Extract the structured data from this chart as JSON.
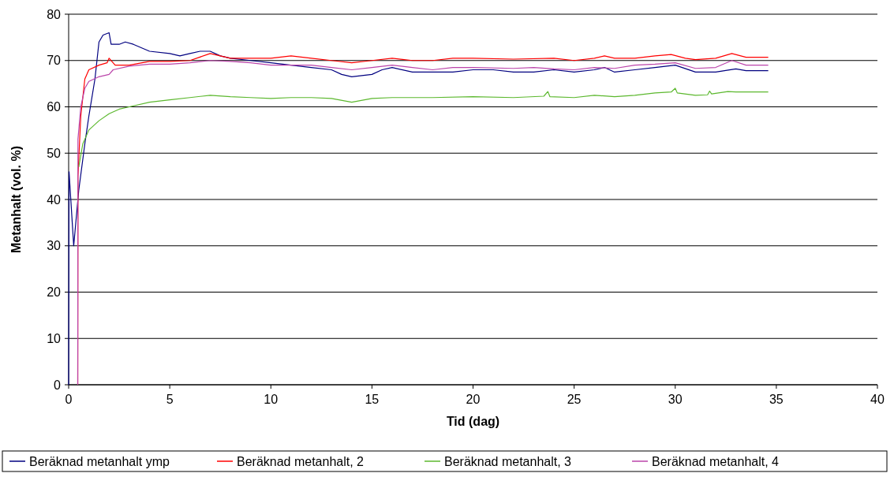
{
  "chart_data": {
    "type": "line",
    "xlabel": "Tid (dag)",
    "ylabel": "Metanhalt (vol. %)",
    "xlim": [
      0,
      40
    ],
    "xticks": [
      0,
      5,
      10,
      15,
      20,
      25,
      30,
      35,
      40
    ],
    "ylim": [
      0,
      80
    ],
    "yticks": [
      0,
      10,
      20,
      30,
      40,
      50,
      60,
      70,
      80
    ],
    "grid": "y",
    "legend": "bottom",
    "marker": "none",
    "line_style": "solid",
    "series": [
      {
        "name": "Beräknad metanhalt ymp",
        "color": "#000080",
        "x": [
          0,
          0.02,
          0.25,
          0.5,
          0.8,
          1.0,
          1.3,
          1.5,
          1.7,
          2.0,
          2.1,
          2.5,
          2.8,
          3.2,
          4,
          5,
          5.5,
          6,
          6.5,
          7,
          7.5,
          8,
          9,
          10,
          11,
          12,
          13,
          13.5,
          14,
          15,
          15.5,
          16,
          17,
          18,
          19,
          20,
          21,
          22,
          23,
          24,
          25,
          26,
          26.5,
          27,
          28,
          29,
          30,
          31,
          32,
          33,
          33.5,
          34.6
        ],
        "values": [
          0,
          46,
          30,
          42,
          52,
          58,
          66,
          74,
          75.5,
          76,
          73.5,
          73.5,
          74,
          73.5,
          72,
          71.5,
          71,
          71.5,
          72,
          72,
          71,
          70.5,
          70,
          69.5,
          69,
          68.5,
          68,
          67,
          66.5,
          67,
          68,
          68.5,
          67.5,
          67.5,
          67.5,
          68,
          68,
          67.5,
          67.5,
          68,
          67.5,
          68,
          68.5,
          67.5,
          68,
          68.5,
          69,
          67.5,
          67.5,
          68.2,
          67.8,
          67.8
        ]
      },
      {
        "name": "Beräknad metanhalt, 2",
        "color": "#ff0000",
        "x": [
          0.45,
          0.46,
          0.6,
          0.8,
          1.0,
          1.5,
          1.9,
          2.0,
          2.3,
          3,
          4,
          5,
          6,
          7,
          8,
          9,
          10,
          11,
          12,
          13,
          14,
          15,
          16,
          17,
          18,
          19,
          20,
          22,
          24,
          25,
          26,
          26.5,
          27,
          28,
          29,
          29.8,
          30.5,
          31,
          32,
          32.8,
          33.5,
          34.6
        ],
        "values": [
          0,
          45,
          58,
          66,
          68,
          69,
          69.5,
          70.5,
          69,
          69,
          69.8,
          69.8,
          70,
          71.5,
          70.5,
          70.5,
          70.5,
          71,
          70.5,
          70,
          69.5,
          70,
          70.5,
          70,
          70,
          70.5,
          70.5,
          70.3,
          70.5,
          70,
          70.5,
          71,
          70.5,
          70.5,
          71,
          71.3,
          70.5,
          70.2,
          70.5,
          71.5,
          70.7,
          70.7
        ]
      },
      {
        "name": "Beräknad metanhalt, 3",
        "color": "#5cb82e",
        "x": [
          0.5,
          0.7,
          1,
          1.5,
          2,
          2.5,
          3,
          4,
          5,
          6,
          7,
          8,
          9,
          10,
          11,
          12,
          13,
          14,
          15,
          16,
          17,
          18,
          20,
          22,
          23.5,
          23.7,
          23.8,
          25,
          26,
          27,
          28,
          29,
          29.8,
          30,
          30.1,
          31,
          31.6,
          31.7,
          31.8,
          32.6,
          33,
          34.6
        ],
        "values": [
          47,
          52,
          55,
          57,
          58.5,
          59.5,
          60,
          61,
          61.5,
          62,
          62.5,
          62.2,
          62,
          61.8,
          62,
          62,
          61.8,
          61,
          61.8,
          62,
          62,
          62,
          62.2,
          62,
          62.3,
          63.3,
          62.2,
          62,
          62.5,
          62.2,
          62.5,
          63,
          63.2,
          64,
          63,
          62.5,
          62.6,
          63.4,
          62.8,
          63.3,
          63.2,
          63.2
        ]
      },
      {
        "name": "Beräknad metanhalt, 4",
        "color": "#bb44aa",
        "x": [
          0.45,
          0.46,
          0.6,
          0.8,
          1.0,
          1.5,
          2.0,
          2.2,
          3,
          4,
          5,
          6,
          7,
          8,
          9,
          10,
          11,
          12,
          13,
          14,
          15,
          16,
          17,
          18,
          19,
          20,
          22,
          23,
          24,
          25,
          26,
          27,
          28,
          29,
          30,
          31,
          32,
          32.8,
          33.5,
          34.6
        ],
        "values": [
          0,
          53,
          60,
          64,
          65.5,
          66.5,
          67,
          68,
          68.8,
          69.2,
          69.2,
          69.5,
          70,
          69.8,
          69.5,
          69,
          69,
          69,
          68.5,
          68,
          68.5,
          69,
          68.5,
          68,
          68.5,
          68.5,
          68.3,
          68.5,
          68.2,
          68,
          68.5,
          68.3,
          69,
          69.2,
          69.5,
          68.3,
          68.5,
          70,
          69,
          69
        ]
      }
    ]
  }
}
